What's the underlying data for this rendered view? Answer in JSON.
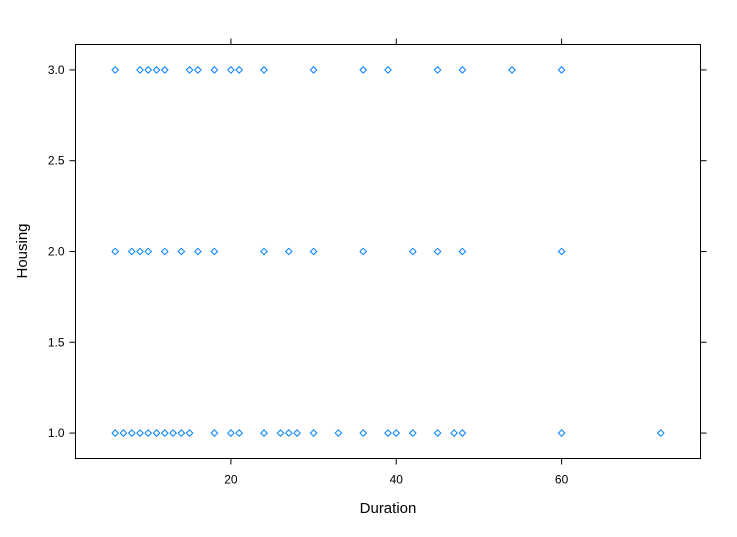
{
  "chart_data": {
    "type": "scatter",
    "title": "",
    "xlabel": "Duration",
    "ylabel": "Housing",
    "xlim": [
      1.2,
      76.8
    ],
    "ylim": [
      0.86,
      3.14
    ],
    "x_ticks": [
      20,
      40,
      60
    ],
    "x_tick_labels": [
      "20",
      "40",
      "60"
    ],
    "y_ticks": [
      1.0,
      1.5,
      2.0,
      2.5,
      3.0
    ],
    "y_tick_labels": [
      "1.0",
      "1.5",
      "2.0",
      "2.5",
      "3.0"
    ],
    "x_ticks_top": true,
    "y_ticks_right": true,
    "grid": false,
    "marker": "diamond-open",
    "color": "#0080ff",
    "points": [
      {
        "x": 6,
        "y": 3
      },
      {
        "x": 9,
        "y": 3
      },
      {
        "x": 10,
        "y": 3
      },
      {
        "x": 11,
        "y": 3
      },
      {
        "x": 12,
        "y": 3
      },
      {
        "x": 15,
        "y": 3
      },
      {
        "x": 16,
        "y": 3
      },
      {
        "x": 18,
        "y": 3
      },
      {
        "x": 20,
        "y": 3
      },
      {
        "x": 21,
        "y": 3
      },
      {
        "x": 24,
        "y": 3
      },
      {
        "x": 30,
        "y": 3
      },
      {
        "x": 36,
        "y": 3
      },
      {
        "x": 39,
        "y": 3
      },
      {
        "x": 45,
        "y": 3
      },
      {
        "x": 48,
        "y": 3
      },
      {
        "x": 54,
        "y": 3
      },
      {
        "x": 60,
        "y": 3
      },
      {
        "x": 6,
        "y": 2
      },
      {
        "x": 8,
        "y": 2
      },
      {
        "x": 9,
        "y": 2
      },
      {
        "x": 10,
        "y": 2
      },
      {
        "x": 12,
        "y": 2
      },
      {
        "x": 14,
        "y": 2
      },
      {
        "x": 16,
        "y": 2
      },
      {
        "x": 18,
        "y": 2
      },
      {
        "x": 24,
        "y": 2
      },
      {
        "x": 27,
        "y": 2
      },
      {
        "x": 30,
        "y": 2
      },
      {
        "x": 36,
        "y": 2
      },
      {
        "x": 42,
        "y": 2
      },
      {
        "x": 45,
        "y": 2
      },
      {
        "x": 48,
        "y": 2
      },
      {
        "x": 60,
        "y": 2
      },
      {
        "x": 6,
        "y": 1
      },
      {
        "x": 7,
        "y": 1
      },
      {
        "x": 8,
        "y": 1
      },
      {
        "x": 9,
        "y": 1
      },
      {
        "x": 10,
        "y": 1
      },
      {
        "x": 11,
        "y": 1
      },
      {
        "x": 12,
        "y": 1
      },
      {
        "x": 13,
        "y": 1
      },
      {
        "x": 14,
        "y": 1
      },
      {
        "x": 15,
        "y": 1
      },
      {
        "x": 18,
        "y": 1
      },
      {
        "x": 20,
        "y": 1
      },
      {
        "x": 21,
        "y": 1
      },
      {
        "x": 24,
        "y": 1
      },
      {
        "x": 26,
        "y": 1
      },
      {
        "x": 27,
        "y": 1
      },
      {
        "x": 28,
        "y": 1
      },
      {
        "x": 30,
        "y": 1
      },
      {
        "x": 33,
        "y": 1
      },
      {
        "x": 36,
        "y": 1
      },
      {
        "x": 39,
        "y": 1
      },
      {
        "x": 40,
        "y": 1
      },
      {
        "x": 42,
        "y": 1
      },
      {
        "x": 45,
        "y": 1
      },
      {
        "x": 47,
        "y": 1
      },
      {
        "x": 48,
        "y": 1
      },
      {
        "x": 60,
        "y": 1
      },
      {
        "x": 72,
        "y": 1
      }
    ]
  }
}
